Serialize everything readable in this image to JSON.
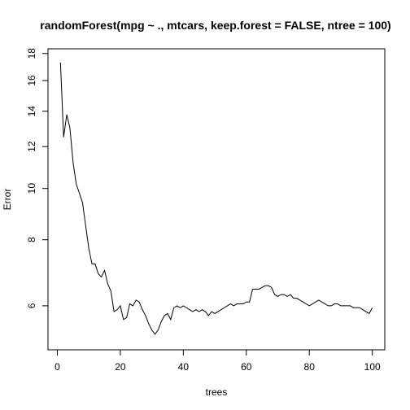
{
  "chart_data": {
    "type": "line",
    "title": "randomForest(mpg ~ ., mtcars, keep.forest = FALSE, ntree = 100)",
    "xlabel": "trees",
    "ylabel": "Error",
    "x_scale": "linear",
    "y_scale": "log",
    "xlim": [
      1,
      100
    ],
    "ylim": [
      5.2,
      17.5
    ],
    "x_ticks": [
      0,
      20,
      40,
      60,
      80,
      100
    ],
    "y_ticks": [
      6,
      8,
      10,
      12,
      14,
      16,
      18
    ],
    "grid": false,
    "legend": "none",
    "line_color": "#000000",
    "series": [
      {
        "x": [
          1,
          2,
          3,
          4,
          5,
          6,
          7,
          8,
          9,
          10,
          11,
          12,
          13,
          14,
          15,
          16,
          17,
          18,
          19,
          20,
          21,
          22,
          23,
          24,
          25,
          26,
          27,
          28,
          29,
          30,
          31,
          32,
          33,
          34,
          35,
          36,
          37,
          38,
          39,
          40,
          41,
          42,
          43,
          44,
          45,
          46,
          47,
          48,
          49,
          50,
          51,
          52,
          53,
          54,
          55,
          56,
          57,
          58,
          59,
          60,
          61,
          62,
          63,
          64,
          65,
          66,
          67,
          68,
          69,
          70,
          71,
          72,
          73,
          74,
          75,
          76,
          77,
          78,
          79,
          80,
          81,
          82,
          83,
          84,
          85,
          86,
          87,
          88,
          89,
          90,
          91,
          92,
          93,
          94,
          95,
          96,
          97,
          98,
          99,
          100
        ],
        "y": [
          17.3,
          12.5,
          13.8,
          13.0,
          11.2,
          10.2,
          9.8,
          9.4,
          8.5,
          7.7,
          7.2,
          7.2,
          6.9,
          6.8,
          7.0,
          6.6,
          6.4,
          5.85,
          5.9,
          6.0,
          5.65,
          5.7,
          6.05,
          6.0,
          6.15,
          6.1,
          5.9,
          5.75,
          5.55,
          5.4,
          5.3,
          5.4,
          5.6,
          5.75,
          5.8,
          5.65,
          5.95,
          6.0,
          5.95,
          6.0,
          5.95,
          5.9,
          5.85,
          5.9,
          5.85,
          5.9,
          5.85,
          5.75,
          5.85,
          5.8,
          5.85,
          5.9,
          5.95,
          6.0,
          6.05,
          6.0,
          6.05,
          6.05,
          6.05,
          6.1,
          6.1,
          6.45,
          6.45,
          6.45,
          6.5,
          6.55,
          6.55,
          6.5,
          6.3,
          6.25,
          6.3,
          6.3,
          6.25,
          6.3,
          6.2,
          6.2,
          6.15,
          6.1,
          6.05,
          6.0,
          6.05,
          6.1,
          6.15,
          6.1,
          6.05,
          6.0,
          6.0,
          6.05,
          6.05,
          6.0,
          6.0,
          6.0,
          6.0,
          5.95,
          5.95,
          5.95,
          5.9,
          5.85,
          5.8,
          5.95
        ]
      }
    ]
  }
}
